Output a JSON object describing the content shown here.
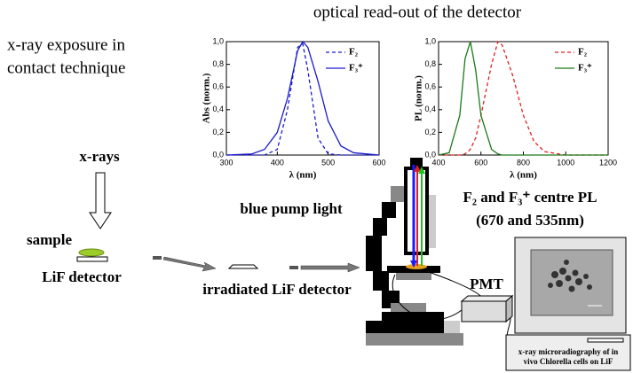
{
  "header": {
    "title": "optical read-out of the detector"
  },
  "exposure": {
    "lines": [
      "x-ray exposure in",
      "contact technique"
    ]
  },
  "labels": {
    "xrays": "x-rays",
    "sample": "sample",
    "detector": "LiF detector",
    "irradiated": "irradiated LiF detector",
    "pump": "blue pump light",
    "pl_title": "F₂ and  F₃⁺  centre PL",
    "pl_sub": "(670 and 535nm)",
    "pmt": "PMT",
    "screen_caption": [
      "x-ray microradiography of in",
      "vivo Chlorella cells on LiF"
    ]
  },
  "chart_data": [
    {
      "type": "line",
      "xlabel": "λ (nm)",
      "ylabel": "Abs (norm.)",
      "x": [
        300,
        350,
        375,
        400,
        420,
        440,
        450,
        460,
        480,
        500,
        525,
        550,
        600
      ],
      "series": [
        {
          "name": "F₂",
          "color": "#1a1acc",
          "linestyle": "dashed",
          "values": [
            0,
            0,
            0,
            0.05,
            0.4,
            0.95,
            0.98,
            0.75,
            0.15,
            0.01,
            0,
            0,
            0
          ]
        },
        {
          "name": "F₃⁺",
          "color": "#1a1acc",
          "linestyle": "solid",
          "values": [
            0,
            0.01,
            0.05,
            0.2,
            0.5,
            0.92,
            1.0,
            0.95,
            0.65,
            0.3,
            0.08,
            0.02,
            0
          ]
        }
      ],
      "xlim": [
        300,
        600
      ],
      "xticks": [
        300,
        400,
        500,
        600
      ],
      "ylim": [
        0,
        1
      ],
      "yticks": [
        {
          "value": 0,
          "label": "0,0"
        },
        {
          "value": 0.2,
          "label": "0,2"
        },
        {
          "value": 0.4,
          "label": "0,4"
        },
        {
          "value": 0.6,
          "label": "0,6"
        },
        {
          "value": 0.8,
          "label": "0,8"
        },
        {
          "value": 1,
          "label": "1,0"
        }
      ],
      "legend": "upper right"
    },
    {
      "type": "line",
      "xlabel": "λ (nm)",
      "ylabel": "PL (norm.)",
      "x": [
        400,
        450,
        500,
        525,
        550,
        575,
        600,
        650,
        680,
        700,
        750,
        800,
        850,
        900,
        1000,
        1200
      ],
      "series": [
        {
          "name": "F₂",
          "color": "#e02020",
          "linestyle": "dashed",
          "values": [
            0,
            0,
            0,
            0.01,
            0.05,
            0.15,
            0.35,
            0.8,
            1.0,
            0.97,
            0.7,
            0.35,
            0.12,
            0.03,
            0,
            0
          ]
        },
        {
          "name": "F₃⁺",
          "color": "#1a7a1a",
          "linestyle": "solid",
          "values": [
            0,
            0.02,
            0.35,
            0.85,
            1.0,
            0.75,
            0.35,
            0.05,
            0.01,
            0,
            0,
            0,
            0,
            0,
            0,
            0
          ]
        }
      ],
      "xlim": [
        400,
        1200
      ],
      "xticks": [
        400,
        600,
        800,
        1000,
        1200
      ],
      "ylim": [
        0,
        1
      ],
      "yticks": [
        {
          "value": 0,
          "label": "0,0"
        },
        {
          "value": 0.2,
          "label": "0,2"
        },
        {
          "value": 0.4,
          "label": "0,4"
        },
        {
          "value": 0.6,
          "label": "0,6"
        },
        {
          "value": 0.8,
          "label": "0,8"
        },
        {
          "value": 1,
          "label": "1,0"
        }
      ],
      "legend": "upper right"
    }
  ]
}
